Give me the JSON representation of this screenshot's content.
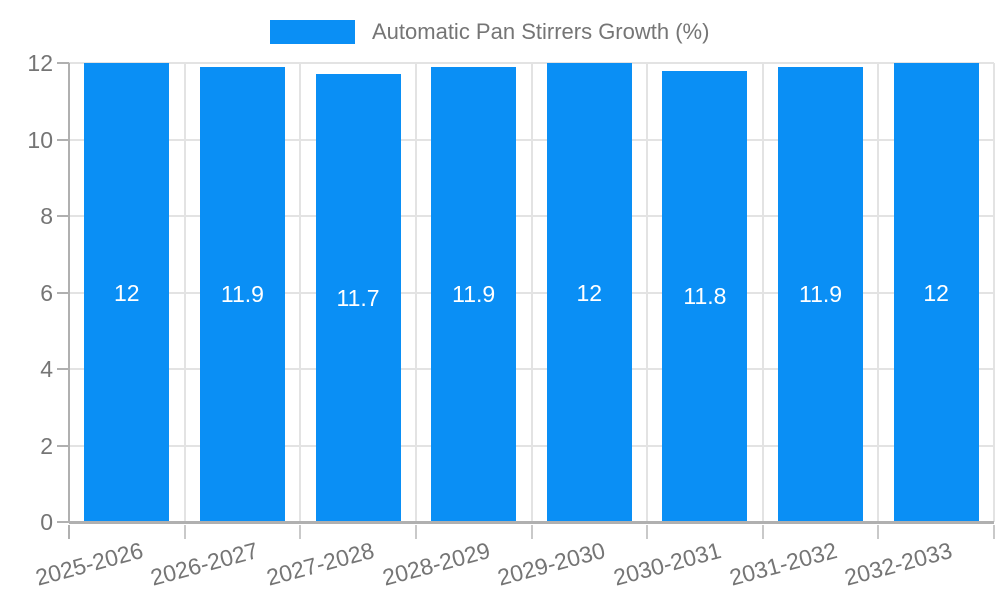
{
  "chart_data": {
    "type": "bar",
    "title": "Automatic Pan Stirrers Growth (%)",
    "categories": [
      "2025-2026",
      "2026-2027",
      "2027-2028",
      "2028-2029",
      "2029-2030",
      "2030-2031",
      "2031-2032",
      "2032-2033"
    ],
    "values": [
      12,
      11.9,
      11.7,
      11.9,
      12,
      11.8,
      11.9,
      12
    ],
    "value_labels": [
      "12",
      "11.9",
      "11.7",
      "11.9",
      "12",
      "11.8",
      "11.9",
      "12"
    ],
    "xlabel": "",
    "ylabel": "",
    "ylim": [
      0,
      12
    ],
    "yticks": [
      0,
      2,
      4,
      6,
      8,
      10,
      12
    ],
    "grid": true,
    "legend_position": "top-center",
    "colors": {
      "bar": "#0A8FF5",
      "axis_label": "#757575",
      "legend_text": "#757575",
      "gridline": "#e3e3e3",
      "axis_line": "#b0b0b0",
      "tick": "#c9c9c9",
      "value_label": "#ffffff",
      "background": "#ffffff"
    }
  },
  "legend": {
    "label": "Automatic Pan Stirrers Growth (%)"
  }
}
